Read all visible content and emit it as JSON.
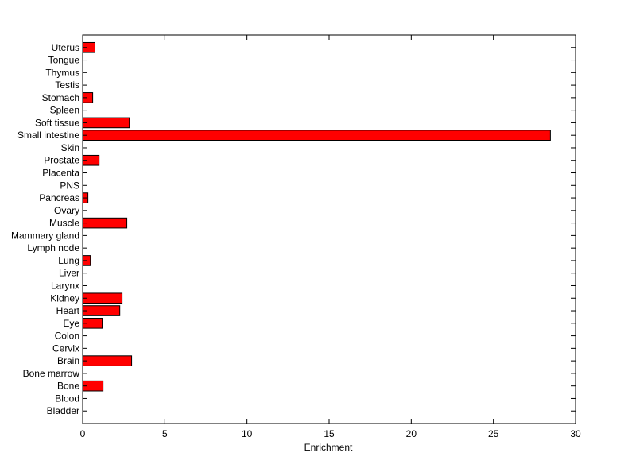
{
  "chart_data": {
    "type": "bar",
    "orientation": "horizontal",
    "title": "",
    "xlabel": "Enrichment",
    "ylabel": "",
    "xlim": [
      0,
      30
    ],
    "xticks": [
      0,
      5,
      10,
      15,
      20,
      25,
      30
    ],
    "grid": false,
    "bar_color": "#ff0000",
    "categories": [
      "Bladder",
      "Blood",
      "Bone",
      "Bone marrow",
      "Brain",
      "Cervix",
      "Colon",
      "Eye",
      "Heart",
      "Kidney",
      "Larynx",
      "Liver",
      "Lung",
      "Lymph node",
      "Mammary gland",
      "Muscle",
      "Ovary",
      "Pancreas",
      "PNS",
      "Placenta",
      "Prostate",
      "Skin",
      "Small intestine",
      "Soft tissue",
      "Spleen",
      "Stomach",
      "Testis",
      "Thymus",
      "Tongue",
      "Uterus"
    ],
    "values": [
      0,
      0,
      1.24,
      0,
      2.98,
      0,
      0,
      1.19,
      2.26,
      2.4,
      0,
      0,
      0.47,
      0,
      0,
      2.69,
      0,
      0.32,
      0,
      0,
      1.0,
      0,
      28.47,
      2.84,
      0,
      0.61,
      0,
      0,
      0,
      0.75
    ]
  }
}
